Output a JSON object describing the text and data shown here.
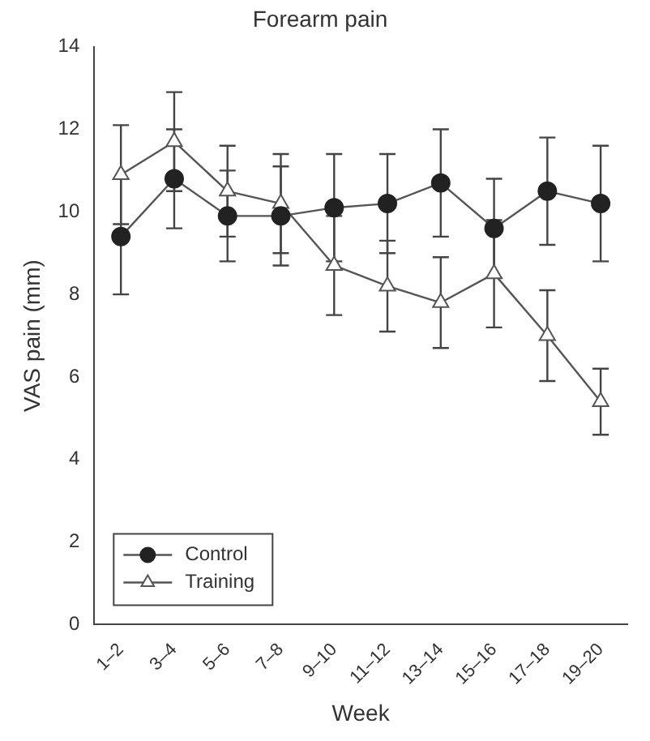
{
  "chart_data": {
    "type": "line",
    "title": "Forearm pain",
    "xlabel": "Week",
    "ylabel": "VAS pain (mm)",
    "categories": [
      "1–2",
      "3–4",
      "5–6",
      "7–8",
      "9–10",
      "11–12",
      "13–14",
      "15–16",
      "17–18",
      "19–20"
    ],
    "series": [
      {
        "name": "Control",
        "color": "#222222",
        "marker": "circle",
        "values": [
          9.4,
          10.8,
          9.9,
          9.9,
          10.1,
          10.2,
          10.7,
          9.6,
          10.5,
          10.2
        ],
        "errors": [
          1.4,
          1.2,
          1.1,
          1.2,
          1.3,
          1.2,
          1.3,
          1.2,
          1.3,
          1.4
        ]
      },
      {
        "name": "Training",
        "color": "#555555",
        "marker": "triangle",
        "values": [
          10.9,
          11.7,
          10.5,
          10.2,
          8.7,
          8.2,
          7.8,
          8.5,
          7.0,
          5.4
        ],
        "errors": [
          1.2,
          1.2,
          1.1,
          1.2,
          1.2,
          1.1,
          1.1,
          1.3,
          1.1,
          0.8
        ]
      }
    ],
    "ylim": [
      0,
      14
    ],
    "yticks": [
      0,
      2,
      4,
      6,
      8,
      10,
      12,
      14
    ],
    "grid": false,
    "legend": "bottom left",
    "line_style": "solid"
  }
}
